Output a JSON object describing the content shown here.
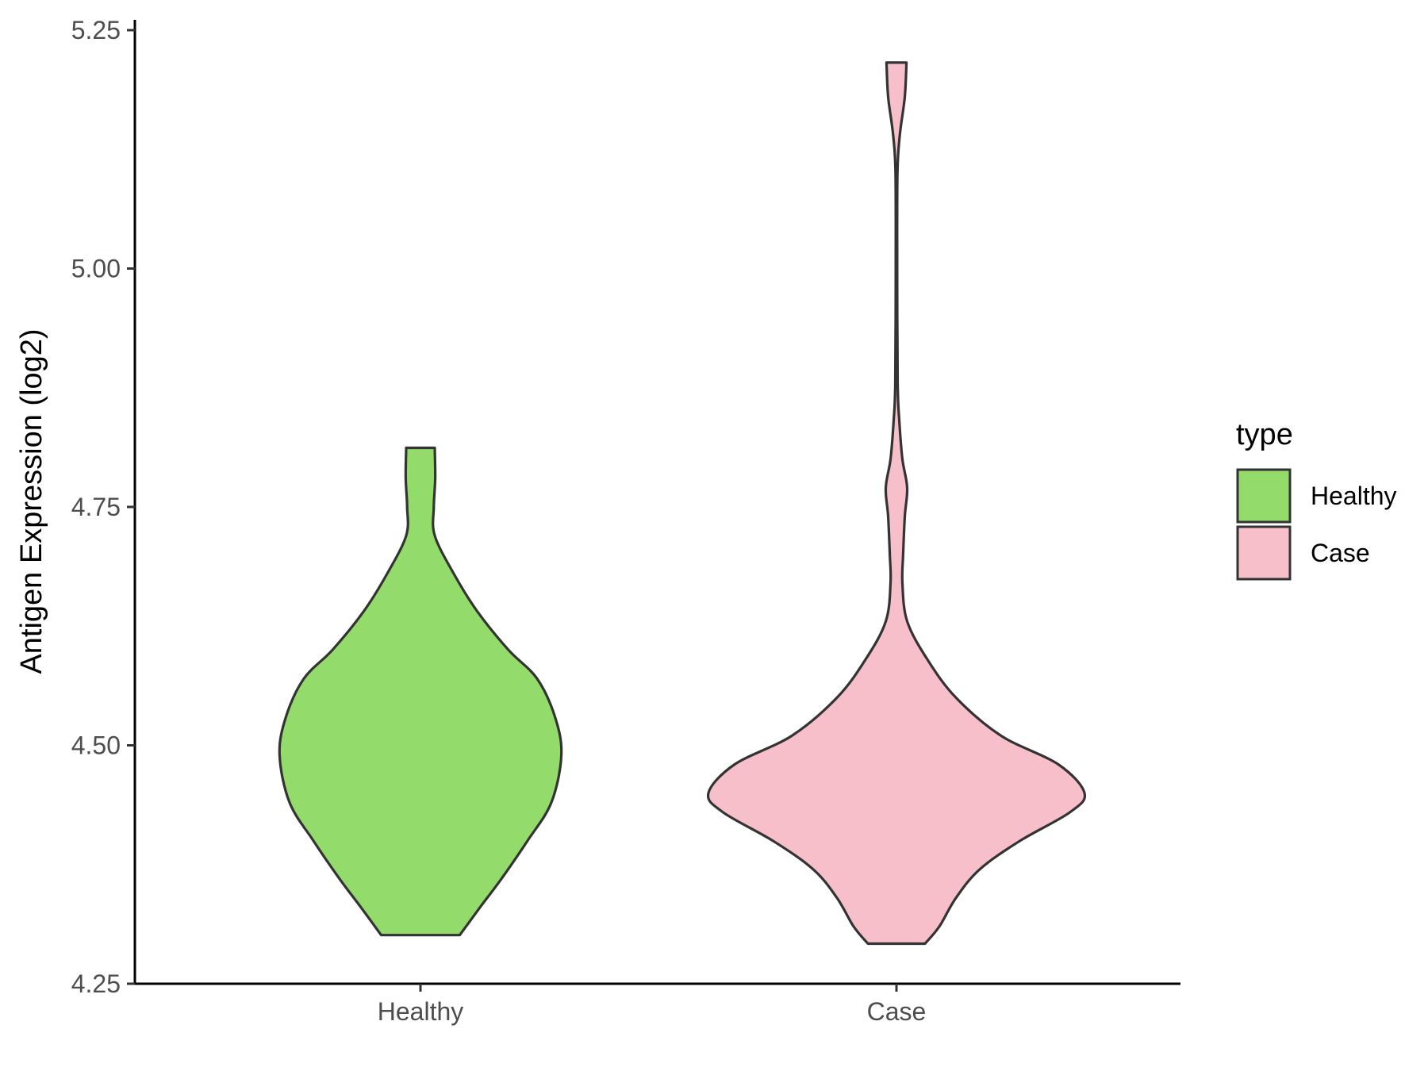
{
  "chart_data": {
    "type": "violin",
    "xlabel": "",
    "ylabel": "Antigen Expression (log2)",
    "ylim": [
      4.25,
      5.25
    ],
    "yticks": [
      "4.25",
      "4.50",
      "4.75",
      "5.00",
      "5.25"
    ],
    "categories": [
      "Healthy",
      "Case"
    ],
    "grid": false,
    "legend": {
      "title": "type",
      "position": "right",
      "items": [
        {
          "label": "Healthy",
          "color": "#93db6a"
        },
        {
          "label": "Case",
          "color": "#f7bfca"
        }
      ]
    },
    "series": [
      {
        "name": "Healthy",
        "color": "#93db6a",
        "min": 4.301,
        "max": 4.812,
        "profile": [
          [
            4.301,
            0.165
          ],
          [
            4.33,
            0.25
          ],
          [
            4.36,
            0.34
          ],
          [
            4.4,
            0.45
          ],
          [
            4.44,
            0.55
          ],
          [
            4.49,
            0.592
          ],
          [
            4.53,
            0.565
          ],
          [
            4.57,
            0.49
          ],
          [
            4.6,
            0.37
          ],
          [
            4.64,
            0.24
          ],
          [
            4.68,
            0.14
          ],
          [
            4.72,
            0.06
          ],
          [
            4.75,
            0.056
          ],
          [
            4.78,
            0.062
          ],
          [
            4.812,
            0.06
          ]
        ]
      },
      {
        "name": "Case",
        "color": "#f7bfca",
        "min": 4.292,
        "max": 5.216,
        "profile": [
          [
            4.292,
            0.12
          ],
          [
            4.31,
            0.18
          ],
          [
            4.34,
            0.25
          ],
          [
            4.37,
            0.35
          ],
          [
            4.4,
            0.52
          ],
          [
            4.43,
            0.73
          ],
          [
            4.45,
            0.79
          ],
          [
            4.48,
            0.68
          ],
          [
            4.51,
            0.44
          ],
          [
            4.55,
            0.25
          ],
          [
            4.59,
            0.13
          ],
          [
            4.63,
            0.045
          ],
          [
            4.67,
            0.025
          ],
          [
            4.7,
            0.028
          ],
          [
            4.74,
            0.035
          ],
          [
            4.77,
            0.045
          ],
          [
            4.8,
            0.025
          ],
          [
            4.84,
            0.012
          ],
          [
            4.88,
            0.005
          ],
          [
            5.0,
            0.003
          ],
          [
            5.1,
            0.004
          ],
          [
            5.14,
            0.014
          ],
          [
            5.18,
            0.035
          ],
          [
            5.216,
            0.042
          ]
        ]
      }
    ]
  }
}
